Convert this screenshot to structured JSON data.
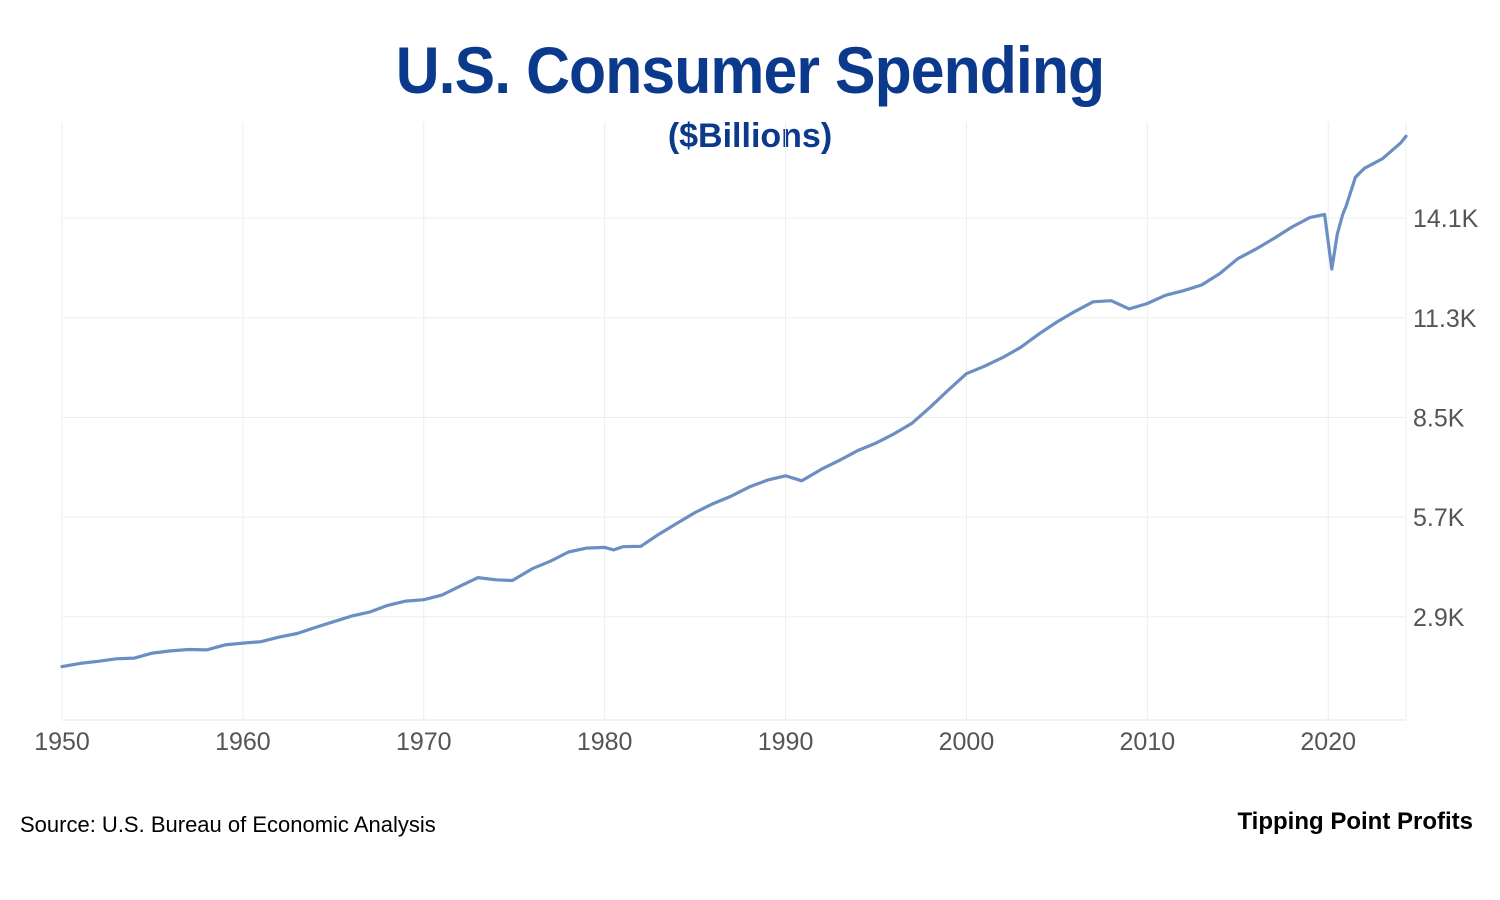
{
  "chart_data": {
    "type": "line",
    "title": "U.S. Consumer Spending",
    "subtitle": "($Billions)",
    "xlabel": "",
    "ylabel": "",
    "x_ticks": [
      "1950",
      "1960",
      "1970",
      "1980",
      "1990",
      "2000",
      "2010",
      "2020"
    ],
    "y_ticks": [
      "2.9K",
      "5.7K",
      "8.5K",
      "11.3K",
      "14.1K"
    ],
    "y_tick_values": [
      2900,
      5700,
      8500,
      11300,
      14100
    ],
    "xlim": [
      1950,
      2024.3
    ],
    "ylim": [
      0,
      16800
    ],
    "grid": true,
    "y_axis_position": "right",
    "series": [
      {
        "color": "#6b8fc2",
        "x": [
          1950,
          1951,
          1952,
          1953,
          1954,
          1955,
          1956,
          1957,
          1958,
          1959,
          1960,
          1961,
          1962,
          1963,
          1964,
          1965,
          1966,
          1967,
          1968,
          1969,
          1970,
          1971,
          1972,
          1973,
          1974,
          1974.9,
          1976,
          1977,
          1978,
          1979,
          1980,
          1980.5,
          1981,
          1982,
          1983,
          1984,
          1985,
          1986,
          1987,
          1988,
          1989,
          1990,
          1990.9,
          1992,
          1993,
          1994,
          1995,
          1996,
          1997,
          1998,
          1999,
          2000,
          2001,
          2002,
          2003,
          2004,
          2005,
          2006,
          2007,
          2008,
          2009,
          2010,
          2011,
          2012,
          2013,
          2014,
          2015,
          2016,
          2017,
          2018,
          2019,
          2019.8,
          2020.2,
          2020.5,
          2020.8,
          2021,
          2021.5,
          2022,
          2023,
          2024,
          2024.3
        ],
        "values": [
          1500,
          1590,
          1650,
          1720,
          1740,
          1880,
          1940,
          1980,
          1970,
          2110,
          2160,
          2200,
          2330,
          2430,
          2600,
          2760,
          2920,
          3030,
          3220,
          3340,
          3380,
          3510,
          3760,
          4000,
          3940,
          3920,
          4250,
          4460,
          4720,
          4830,
          4850,
          4780,
          4870,
          4880,
          5220,
          5530,
          5830,
          6080,
          6290,
          6550,
          6740,
          6860,
          6720,
          7050,
          7300,
          7570,
          7780,
          8040,
          8340,
          8790,
          9270,
          9730,
          9940,
          10180,
          10470,
          10840,
          11180,
          11480,
          11750,
          11780,
          11550,
          11700,
          11930,
          12060,
          12220,
          12540,
          12960,
          13230,
          13530,
          13850,
          14120,
          14200,
          12670,
          13650,
          14200,
          14450,
          15250,
          15500,
          15770,
          16210,
          16400
        ]
      }
    ],
    "source": "Source: U.S. Bureau of Economic Analysis",
    "brand": "Tipping Point Profits"
  }
}
